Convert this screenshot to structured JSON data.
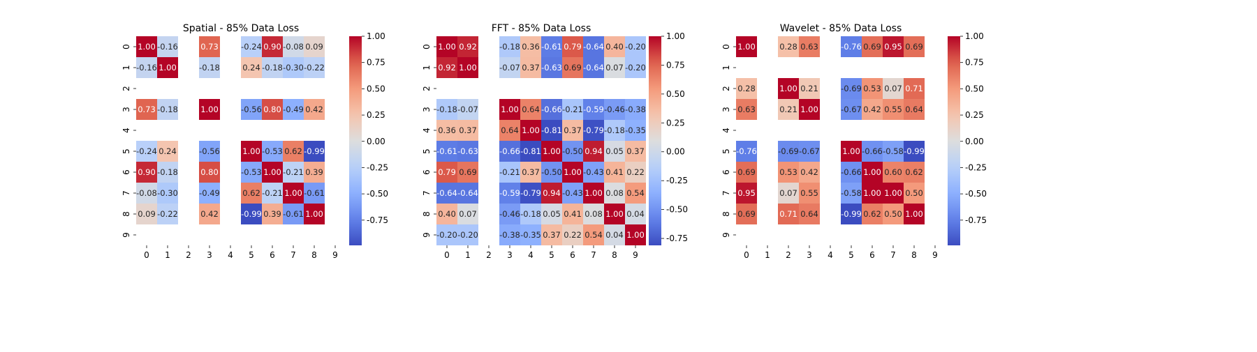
{
  "chart_data": [
    {
      "type": "heatmap",
      "title": "Spatial - 85% Data Loss",
      "x_categories": [
        "0",
        "1",
        "2",
        "3",
        "4",
        "5",
        "6",
        "7",
        "8",
        "9"
      ],
      "y_categories": [
        "0",
        "1",
        "2",
        "3",
        "4",
        "5",
        "6",
        "7",
        "8",
        "9"
      ],
      "matrix": [
        [
          1.0,
          -0.16,
          null,
          0.73,
          null,
          -0.24,
          0.9,
          -0.08,
          0.09,
          null
        ],
        [
          -0.16,
          1.0,
          null,
          -0.18,
          null,
          0.24,
          -0.18,
          -0.3,
          -0.22,
          null
        ],
        [
          null,
          null,
          null,
          null,
          null,
          null,
          null,
          null,
          null,
          null
        ],
        [
          0.73,
          -0.18,
          null,
          1.0,
          null,
          -0.56,
          0.8,
          -0.49,
          0.42,
          null
        ],
        [
          null,
          null,
          null,
          null,
          null,
          null,
          null,
          null,
          null,
          null
        ],
        [
          -0.24,
          0.24,
          null,
          -0.56,
          null,
          1.0,
          -0.53,
          0.62,
          -0.99,
          null
        ],
        [
          0.9,
          -0.18,
          null,
          0.8,
          null,
          -0.53,
          1.0,
          -0.21,
          0.39,
          null
        ],
        [
          -0.08,
          -0.3,
          null,
          -0.49,
          null,
          0.62,
          -0.21,
          1.0,
          -0.61,
          null
        ],
        [
          0.09,
          -0.22,
          null,
          0.42,
          null,
          -0.99,
          0.39,
          -0.61,
          1.0,
          null
        ],
        [
          null,
          null,
          null,
          null,
          null,
          null,
          null,
          null,
          null,
          null
        ]
      ],
      "colorbar": {
        "vmin": -0.99,
        "vmax": 1.0,
        "ticks": [
          "-0.75",
          "-0.50",
          "-0.25",
          "0.00",
          "0.25",
          "0.50",
          "0.75",
          "1.00"
        ]
      }
    },
    {
      "type": "heatmap",
      "title": "FFT - 85% Data Loss",
      "x_categories": [
        "0",
        "1",
        "2",
        "3",
        "4",
        "5",
        "6",
        "7",
        "8",
        "9"
      ],
      "y_categories": [
        "0",
        "1",
        "2",
        "3",
        "4",
        "5",
        "6",
        "7",
        "8",
        "9"
      ],
      "matrix": [
        [
          1.0,
          0.92,
          null,
          -0.18,
          0.36,
          -0.61,
          0.79,
          -0.64,
          0.4,
          -0.2
        ],
        [
          0.92,
          1.0,
          null,
          -0.07,
          0.37,
          -0.63,
          0.69,
          -0.64,
          0.07,
          -0.2
        ],
        [
          null,
          null,
          null,
          null,
          null,
          null,
          null,
          null,
          null,
          null
        ],
        [
          -0.18,
          -0.07,
          null,
          1.0,
          0.64,
          -0.66,
          -0.21,
          -0.59,
          -0.46,
          -0.38
        ],
        [
          0.36,
          0.37,
          null,
          0.64,
          1.0,
          -0.81,
          0.37,
          -0.79,
          -0.18,
          -0.35
        ],
        [
          -0.61,
          -0.63,
          null,
          -0.66,
          -0.81,
          1.0,
          -0.5,
          0.94,
          0.05,
          0.37
        ],
        [
          0.79,
          0.69,
          null,
          -0.21,
          0.37,
          -0.5,
          1.0,
          -0.43,
          0.41,
          0.22
        ],
        [
          -0.64,
          -0.64,
          null,
          -0.59,
          -0.79,
          0.94,
          -0.43,
          1.0,
          0.08,
          0.54
        ],
        [
          0.4,
          0.07,
          null,
          -0.46,
          -0.18,
          0.05,
          0.41,
          0.08,
          1.0,
          0.04
        ],
        [
          -0.2,
          -0.2,
          null,
          -0.38,
          -0.35,
          0.37,
          0.22,
          0.54,
          0.04,
          1.0
        ]
      ],
      "colorbar": {
        "vmin": -0.81,
        "vmax": 1.0,
        "ticks": [
          "-0.75",
          "-0.50",
          "-0.25",
          "0.00",
          "0.25",
          "0.50",
          "0.75",
          "1.00"
        ]
      }
    },
    {
      "type": "heatmap",
      "title": "Wavelet - 85% Data Loss",
      "x_categories": [
        "0",
        "1",
        "2",
        "3",
        "4",
        "5",
        "6",
        "7",
        "8",
        "9"
      ],
      "y_categories": [
        "0",
        "1",
        "2",
        "3",
        "4",
        "5",
        "6",
        "7",
        "8",
        "9"
      ],
      "matrix": [
        [
          1.0,
          null,
          0.28,
          0.63,
          null,
          -0.76,
          0.69,
          0.95,
          0.69,
          null
        ],
        [
          null,
          null,
          null,
          null,
          null,
          null,
          null,
          null,
          null,
          null
        ],
        [
          0.28,
          null,
          1.0,
          0.21,
          null,
          -0.69,
          0.53,
          0.07,
          0.71,
          null
        ],
        [
          0.63,
          null,
          0.21,
          1.0,
          null,
          -0.67,
          0.42,
          0.55,
          0.64,
          null
        ],
        [
          null,
          null,
          null,
          null,
          null,
          null,
          null,
          null,
          null,
          null
        ],
        [
          -0.76,
          null,
          -0.69,
          -0.67,
          null,
          1.0,
          -0.66,
          -0.58,
          -0.99,
          null
        ],
        [
          0.69,
          null,
          0.53,
          0.42,
          null,
          -0.66,
          1.0,
          0.6,
          0.62,
          null
        ],
        [
          0.95,
          null,
          0.07,
          0.55,
          null,
          -0.58,
          1.0,
          1.0,
          0.5,
          null
        ],
        [
          0.69,
          null,
          0.71,
          0.64,
          null,
          -0.99,
          0.62,
          0.5,
          1.0,
          null
        ],
        [
          null,
          null,
          null,
          null,
          null,
          null,
          null,
          null,
          null,
          null
        ]
      ],
      "colorbar": {
        "vmin": -0.99,
        "vmax": 1.0,
        "ticks": [
          "-0.75",
          "-0.50",
          "-0.25",
          "0.00",
          "0.25",
          "0.50",
          "0.75",
          "1.00"
        ]
      }
    }
  ],
  "colormap": "coolwarm"
}
